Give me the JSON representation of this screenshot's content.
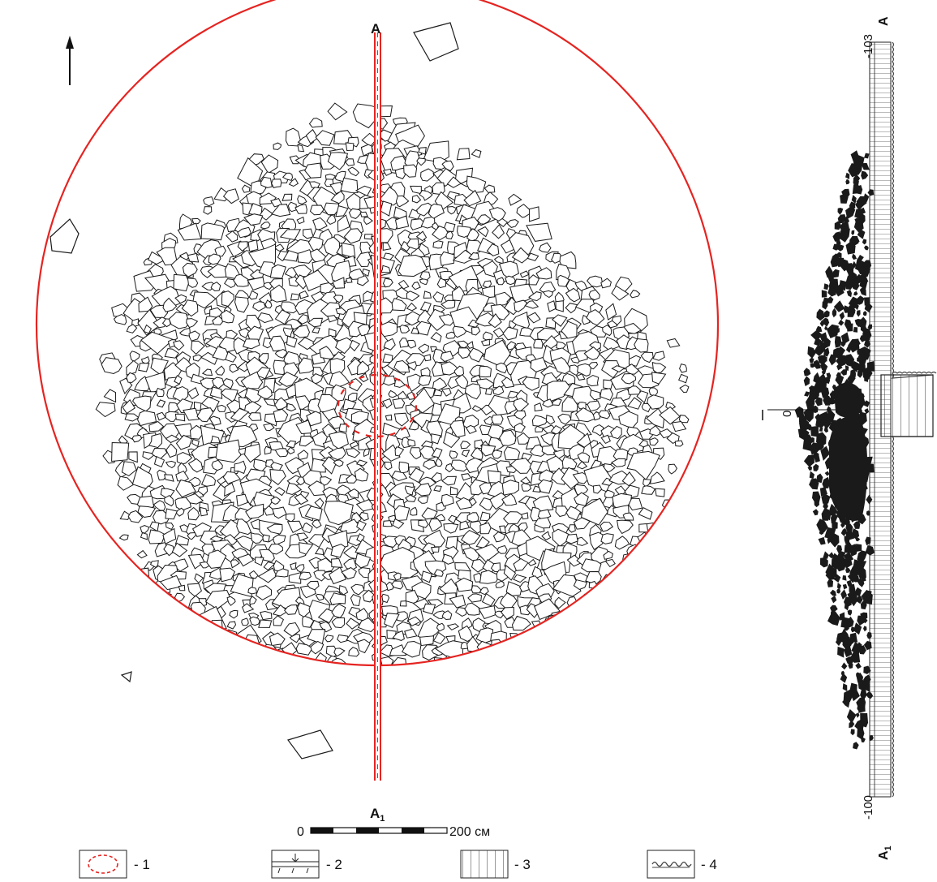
{
  "plan": {
    "north_arrow": "north-arrow-icon",
    "section_label_top": "A",
    "section_label_bottom": "A",
    "section_label_bottom_sub": "1",
    "scale_start": "0",
    "scale_end": "200 см",
    "circle_color": "#e52421",
    "stone_stroke": "#1a1a1a"
  },
  "profile": {
    "label_top": "A",
    "label_bottom": "A",
    "label_bottom_sub": "1",
    "depth_top": "-103",
    "depth_bottom": "-100",
    "zero_mark": "0",
    "stone_fill": "#1a1a1a"
  },
  "legend": [
    {
      "key": "1",
      "text": "- 1",
      "icon": "dashed-red-ellipse-icon"
    },
    {
      "key": "2",
      "text": "- 2",
      "icon": "sod-layer-icon"
    },
    {
      "key": "3",
      "text": "- 3",
      "icon": "vertical-hatch-icon"
    },
    {
      "key": "4",
      "text": "- 4",
      "icon": "wavy-layer-icon"
    }
  ]
}
